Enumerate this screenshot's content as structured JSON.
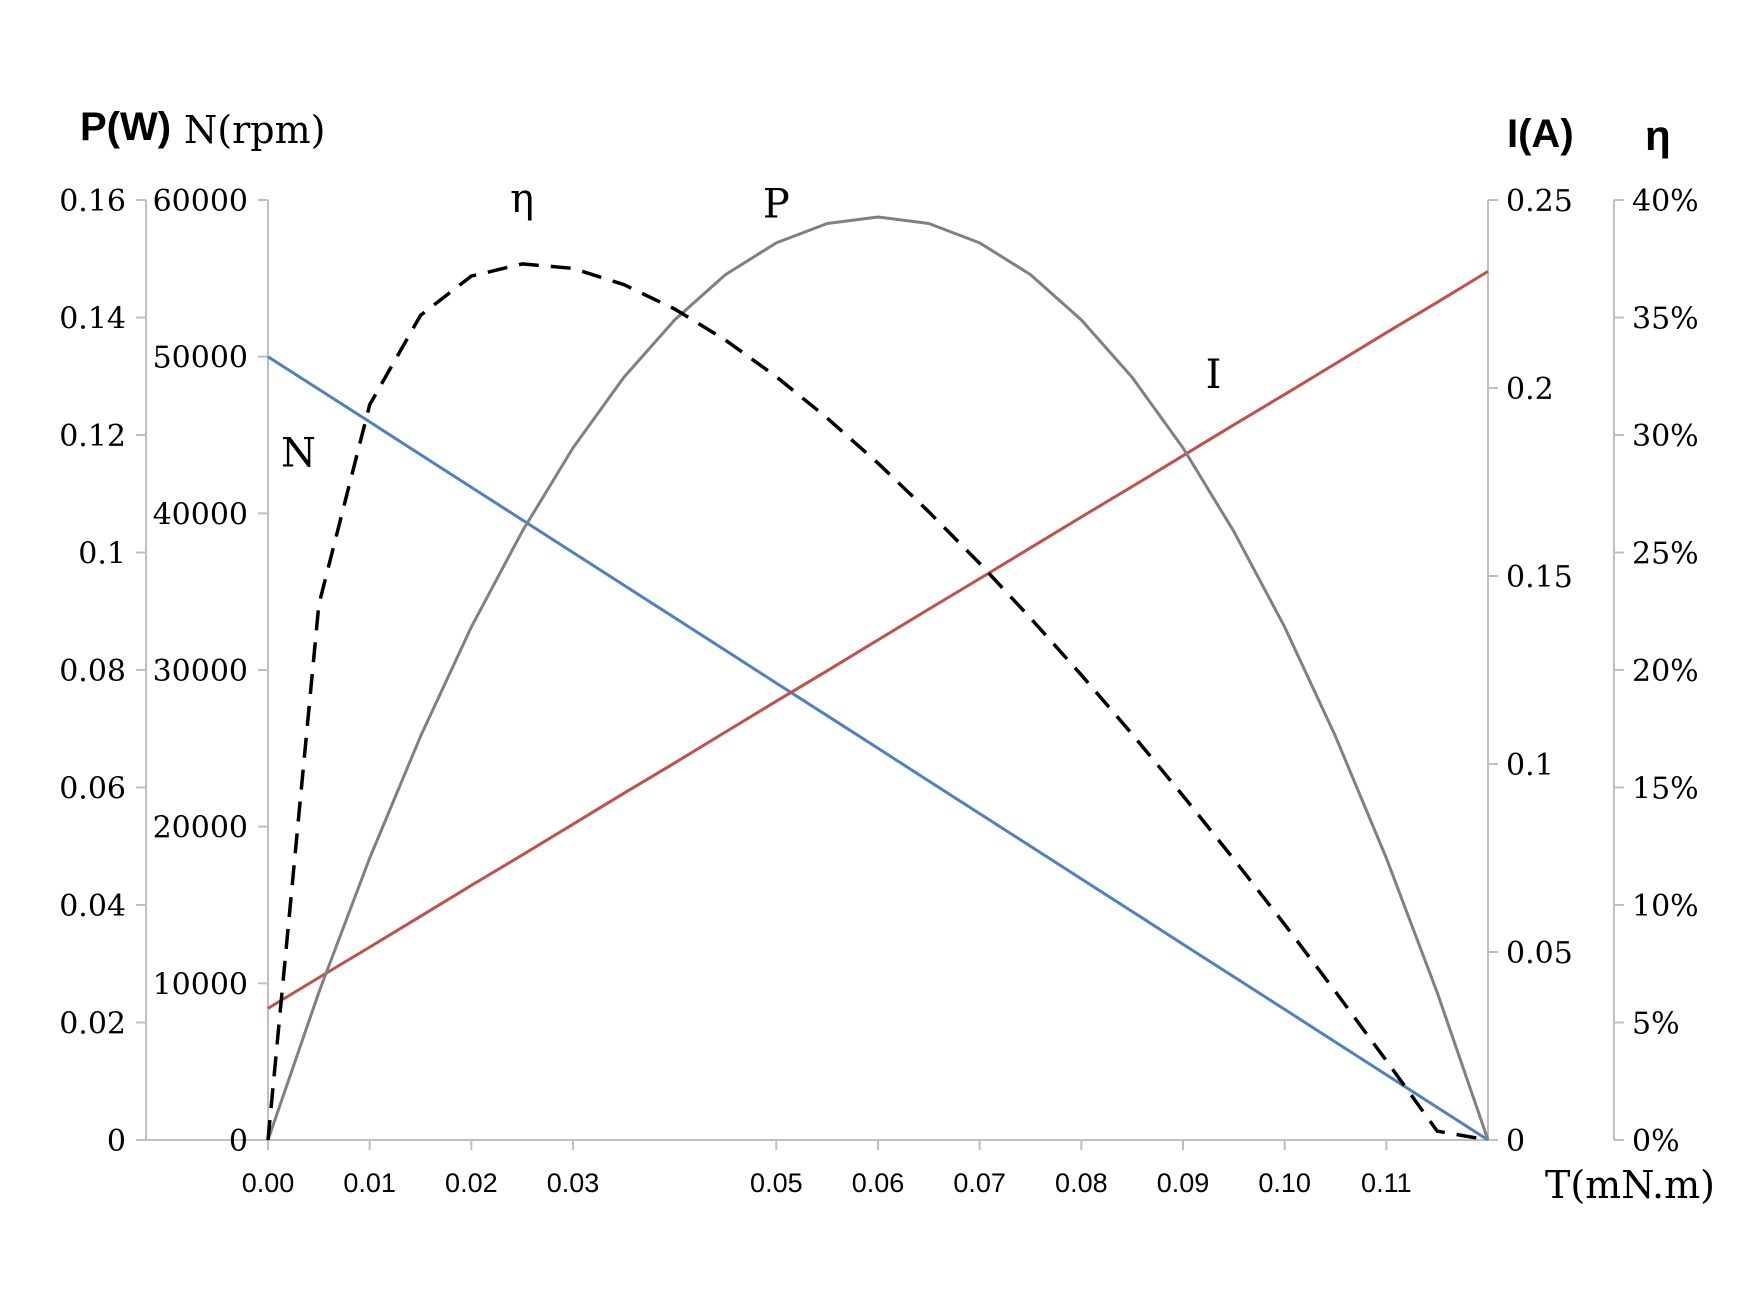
{
  "chart_data": {
    "type": "line",
    "title": "",
    "xlabel": "T(mN.m)",
    "x": [
      0.0,
      0.005,
      0.01,
      0.015,
      0.02,
      0.025,
      0.03,
      0.035,
      0.04,
      0.045,
      0.05,
      0.055,
      0.06,
      0.065,
      0.07,
      0.075,
      0.08,
      0.085,
      0.09,
      0.095,
      0.1,
      0.105,
      0.11,
      0.115,
      0.12
    ],
    "xlim": [
      0.0,
      0.12
    ],
    "xticks": [
      0.0,
      0.01,
      0.02,
      0.03,
      0.05,
      0.06,
      0.07,
      0.08,
      0.09,
      0.1,
      0.11
    ],
    "xtick_labels": [
      "0.00",
      "0.01",
      "0.02",
      "0.03",
      "0.05",
      "0.06",
      "0.07",
      "0.08",
      "0.09",
      "0.10",
      "0.11"
    ],
    "axes": {
      "P": {
        "label": "P(W)",
        "range": [
          0,
          0.16
        ],
        "ticks": [
          "0",
          "0.02",
          "0.04",
          "0.06",
          "0.08",
          "0.1",
          "0.12",
          "0.14",
          "0.16"
        ]
      },
      "N": {
        "label": "N(rpm)",
        "range": [
          0,
          60000
        ],
        "ticks": [
          "0",
          "10000",
          "20000",
          "30000",
          "40000",
          "50000",
          "60000"
        ]
      },
      "I": {
        "label": "I(A)",
        "range": [
          0,
          0.25
        ],
        "ticks": [
          "0",
          "0.05",
          "0.1",
          "0.15",
          "0.2",
          "0.25"
        ]
      },
      "eta": {
        "label": "η",
        "range": [
          0,
          0.4
        ],
        "ticks": [
          "0%",
          "5%",
          "10%",
          "15%",
          "20%",
          "25%",
          "30%",
          "35%",
          "40%"
        ]
      }
    },
    "series": [
      {
        "name": "N",
        "axis": "N",
        "color": "#4F81BD",
        "dash": false,
        "values": [
          50000,
          47917,
          45833,
          43750,
          41667,
          39583,
          37500,
          35417,
          33333,
          31250,
          29167,
          27083,
          25000,
          22917,
          20833,
          18750,
          16667,
          14583,
          12500,
          10417,
          8333,
          6250,
          4167,
          2083,
          0
        ]
      },
      {
        "name": "I",
        "axis": "I",
        "color": "#C0504D",
        "dash": false,
        "values": [
          0.035,
          0.0432,
          0.0513,
          0.0595,
          0.0677,
          0.0758,
          0.084,
          0.0922,
          0.1003,
          0.1085,
          0.1167,
          0.1248,
          0.133,
          0.1412,
          0.1493,
          0.1575,
          0.1657,
          0.1738,
          0.182,
          0.1902,
          0.1983,
          0.2065,
          0.2147,
          0.2228,
          0.231
        ]
      },
      {
        "name": "P",
        "axis": "P",
        "color": "#808080",
        "dash": false,
        "values": [
          0.0,
          0.0251,
          0.048,
          0.0687,
          0.0873,
          0.1036,
          0.1178,
          0.1298,
          0.1396,
          0.1473,
          0.1527,
          0.156,
          0.1571,
          0.156,
          0.1527,
          0.1473,
          0.1396,
          0.1298,
          0.1178,
          0.1036,
          0.0873,
          0.0687,
          0.048,
          0.0251,
          0.0
        ]
      },
      {
        "name": "η",
        "axis": "eta",
        "color": "#000000",
        "dash": true,
        "values": [
          0.0,
          0.2277,
          0.3129,
          0.3509,
          0.3676,
          0.3728,
          0.3709,
          0.364,
          0.3536,
          0.3404,
          0.3248,
          0.3072,
          0.288,
          0.2673,
          0.2453,
          0.2221,
          0.1979,
          0.1727,
          0.1465,
          0.1195,
          0.0917,
          0.0631,
          0.0338,
          0.0038,
          0.0
        ]
      }
    ],
    "annotations": [
      {
        "text": "N",
        "x": 0.003,
        "y": 43000,
        "axis": "N"
      },
      {
        "text": "η",
        "x": 0.025,
        "y": 0.395,
        "axis": "eta"
      },
      {
        "text": "P",
        "x": 0.05,
        "y": 0.157,
        "axis": "P"
      },
      {
        "text": "I",
        "x": 0.093,
        "y": 0.2,
        "axis": "I"
      }
    ],
    "grid": false,
    "legend": "none"
  }
}
